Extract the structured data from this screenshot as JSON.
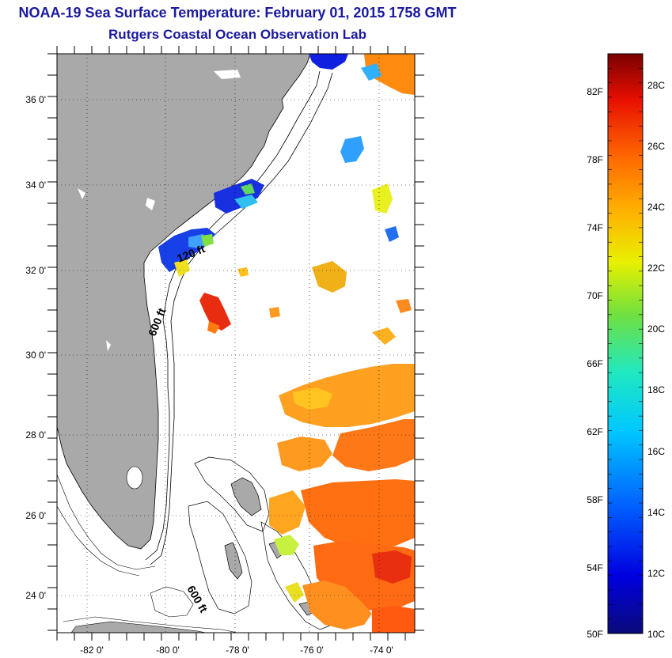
{
  "title": {
    "line1": "NOAA-19 Sea Surface Temperature:  February 01, 2015 1758 GMT",
    "line2": "Rutgers Coastal Ocean Observation Lab"
  },
  "map": {
    "lat_labels": [
      "36 0'",
      "34 0'",
      "32 0'",
      "30 0'",
      "28 0'",
      "26 0'",
      "24 0'"
    ],
    "lon_labels": [
      "-82 0'",
      "-80 0'",
      "-78 0'",
      "-76 0'",
      "-74 0'"
    ],
    "contour_labels": [
      "120 ft",
      "600 ft",
      "600 ft"
    ],
    "land_color": "#a9a9a9"
  },
  "colorbar": {
    "fahrenheit_labels": [
      "82F",
      "78F",
      "74F",
      "70F",
      "66F",
      "62F",
      "58F",
      "54F",
      "50F"
    ],
    "celsius_labels": [
      "28C",
      "26C",
      "24C",
      "22C",
      "20C",
      "18C",
      "16C",
      "14C",
      "12C",
      "10C"
    ],
    "min_c": 10,
    "max_c": 29
  }
}
